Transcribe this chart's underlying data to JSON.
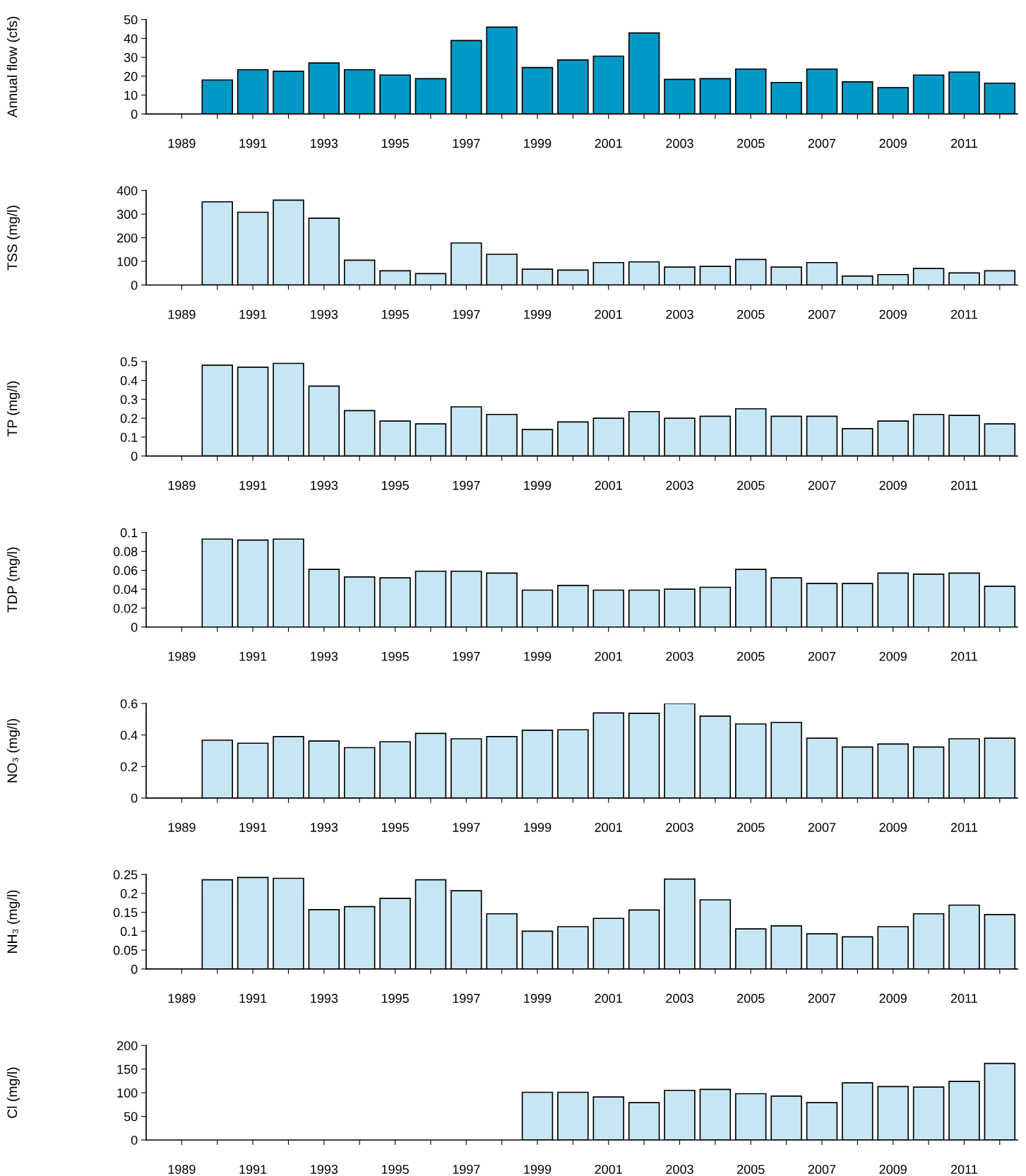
{
  "chart_data": [
    {
      "type": "bar",
      "ylabel": "Annual flow (cfs)",
      "color": "#0099c6",
      "ylim": [
        0,
        50
      ],
      "yticks": [
        0,
        10,
        20,
        30,
        40,
        50
      ],
      "grid": false,
      "categories": [
        "1989",
        null,
        "1991",
        null,
        "1993",
        null,
        "1995",
        null,
        "1997",
        null,
        "1999",
        null,
        "2001",
        null,
        "2003",
        null,
        "2005",
        null,
        "2007",
        null,
        "2009",
        null,
        "2011",
        null
      ],
      "values": [
        null,
        18,
        23.4,
        22.6,
        27,
        23.4,
        20.6,
        18.7,
        38.9,
        46,
        24.6,
        28.6,
        30.6,
        42.9,
        18.3,
        18.7,
        23.8,
        16.7,
        23.8,
        17,
        13.9,
        20.6,
        22.2,
        16.3
      ]
    },
    {
      "type": "bar",
      "ylabel": "TSS (mg/l)",
      "color": "#c5e6f2",
      "ylim": [
        0,
        400
      ],
      "yticks": [
        0,
        100,
        200,
        300,
        400
      ],
      "grid": false,
      "categories": [
        "1989",
        null,
        "1991",
        null,
        "1993",
        null,
        "1995",
        null,
        "1997",
        null,
        "1999",
        null,
        "2001",
        null,
        "2003",
        null,
        "2005",
        null,
        "2007",
        null,
        "2009",
        null,
        "2011",
        null
      ],
      "values": [
        null,
        352,
        308,
        359,
        283,
        105,
        60,
        48,
        178,
        130,
        67,
        63,
        95,
        98,
        76,
        79,
        108,
        76,
        95,
        38,
        44,
        70,
        51,
        60
      ]
    },
    {
      "type": "bar",
      "ylabel": "TP (mg/l)",
      "color": "#c5e6f2",
      "ylim": [
        0,
        0.5
      ],
      "yticks": [
        0,
        0.1,
        0.2,
        0.3,
        0.4,
        0.5
      ],
      "grid": false,
      "categories": [
        "1989",
        null,
        "1991",
        null,
        "1993",
        null,
        "1995",
        null,
        "1997",
        null,
        "1999",
        null,
        "2001",
        null,
        "2003",
        null,
        "2005",
        null,
        "2007",
        null,
        "2009",
        null,
        "2011",
        null
      ],
      "values": [
        null,
        0.48,
        0.47,
        0.49,
        0.37,
        0.24,
        0.185,
        0.17,
        0.26,
        0.22,
        0.14,
        0.18,
        0.2,
        0.235,
        0.2,
        0.21,
        0.25,
        0.21,
        0.21,
        0.145,
        0.185,
        0.22,
        0.215,
        0.17
      ]
    },
    {
      "type": "bar",
      "ylabel": "TDP (mg/l)",
      "color": "#c5e6f2",
      "ylim": [
        0,
        0.1
      ],
      "yticks": [
        0,
        0.02,
        0.04,
        0.06,
        0.08,
        0.1
      ],
      "grid": false,
      "categories": [
        "1989",
        null,
        "1991",
        null,
        "1993",
        null,
        "1995",
        null,
        "1997",
        null,
        "1999",
        null,
        "2001",
        null,
        "2003",
        null,
        "2005",
        null,
        "2007",
        null,
        "2009",
        null,
        "2011",
        null
      ],
      "values": [
        null,
        0.093,
        0.092,
        0.093,
        0.061,
        0.053,
        0.052,
        0.059,
        0.059,
        0.057,
        0.039,
        0.044,
        0.039,
        0.039,
        0.04,
        0.042,
        0.061,
        0.052,
        0.046,
        0.046,
        0.057,
        0.056,
        0.057,
        0.043
      ]
    },
    {
      "type": "bar",
      "ylabel": "NO₃ (mg/l)",
      "color": "#c5e6f2",
      "ylim": [
        0,
        0.6
      ],
      "yticks": [
        0,
        0.2,
        0.4,
        0.6
      ],
      "grid": false,
      "categories": [
        "1989",
        null,
        "1991",
        null,
        "1993",
        null,
        "1995",
        null,
        "1997",
        null,
        "1999",
        null,
        "2001",
        null,
        "2003",
        null,
        "2005",
        null,
        "2007",
        null,
        "2009",
        null,
        "2011",
        null
      ],
      "values": [
        null,
        0.367,
        0.348,
        0.39,
        0.362,
        0.32,
        0.357,
        0.41,
        0.376,
        0.39,
        0.43,
        0.433,
        0.54,
        0.538,
        0.6,
        0.52,
        0.47,
        0.48,
        0.38,
        0.324,
        0.343,
        0.324,
        0.376,
        0.38
      ]
    },
    {
      "type": "bar",
      "ylabel": "NH₃ (mg/l)",
      "color": "#c5e6f2",
      "ylim": [
        0,
        0.25
      ],
      "yticks": [
        0,
        0.05,
        0.1,
        0.15,
        0.2,
        0.25
      ],
      "grid": false,
      "categories": [
        "1989",
        null,
        "1991",
        null,
        "1993",
        null,
        "1995",
        null,
        "1997",
        null,
        "1999",
        null,
        "2001",
        null,
        "2003",
        null,
        "2005",
        null,
        "2007",
        null,
        "2009",
        null,
        "2011",
        null
      ],
      "values": [
        null,
        0.236,
        0.242,
        0.24,
        0.157,
        0.165,
        0.187,
        0.236,
        0.207,
        0.146,
        0.1,
        0.112,
        0.134,
        0.156,
        0.238,
        0.183,
        0.106,
        0.114,
        0.093,
        0.085,
        0.112,
        0.146,
        0.169,
        0.144
      ]
    },
    {
      "type": "bar",
      "ylabel": "Cl (mg/l)",
      "color": "#c5e6f2",
      "ylim": [
        0,
        200
      ],
      "yticks": [
        0,
        50,
        100,
        150,
        200
      ],
      "grid": false,
      "categories": [
        "1989",
        null,
        "1991",
        null,
        "1993",
        null,
        "1995",
        null,
        "1997",
        null,
        "1999",
        null,
        "2001",
        null,
        "2003",
        null,
        "2005",
        null,
        "2007",
        null,
        "2009",
        null,
        "2011",
        null
      ],
      "values": [
        null,
        null,
        null,
        null,
        null,
        null,
        null,
        null,
        null,
        null,
        101,
        101,
        91,
        79,
        105,
        107,
        98,
        93,
        79,
        121,
        113,
        112,
        124,
        162
      ]
    }
  ]
}
